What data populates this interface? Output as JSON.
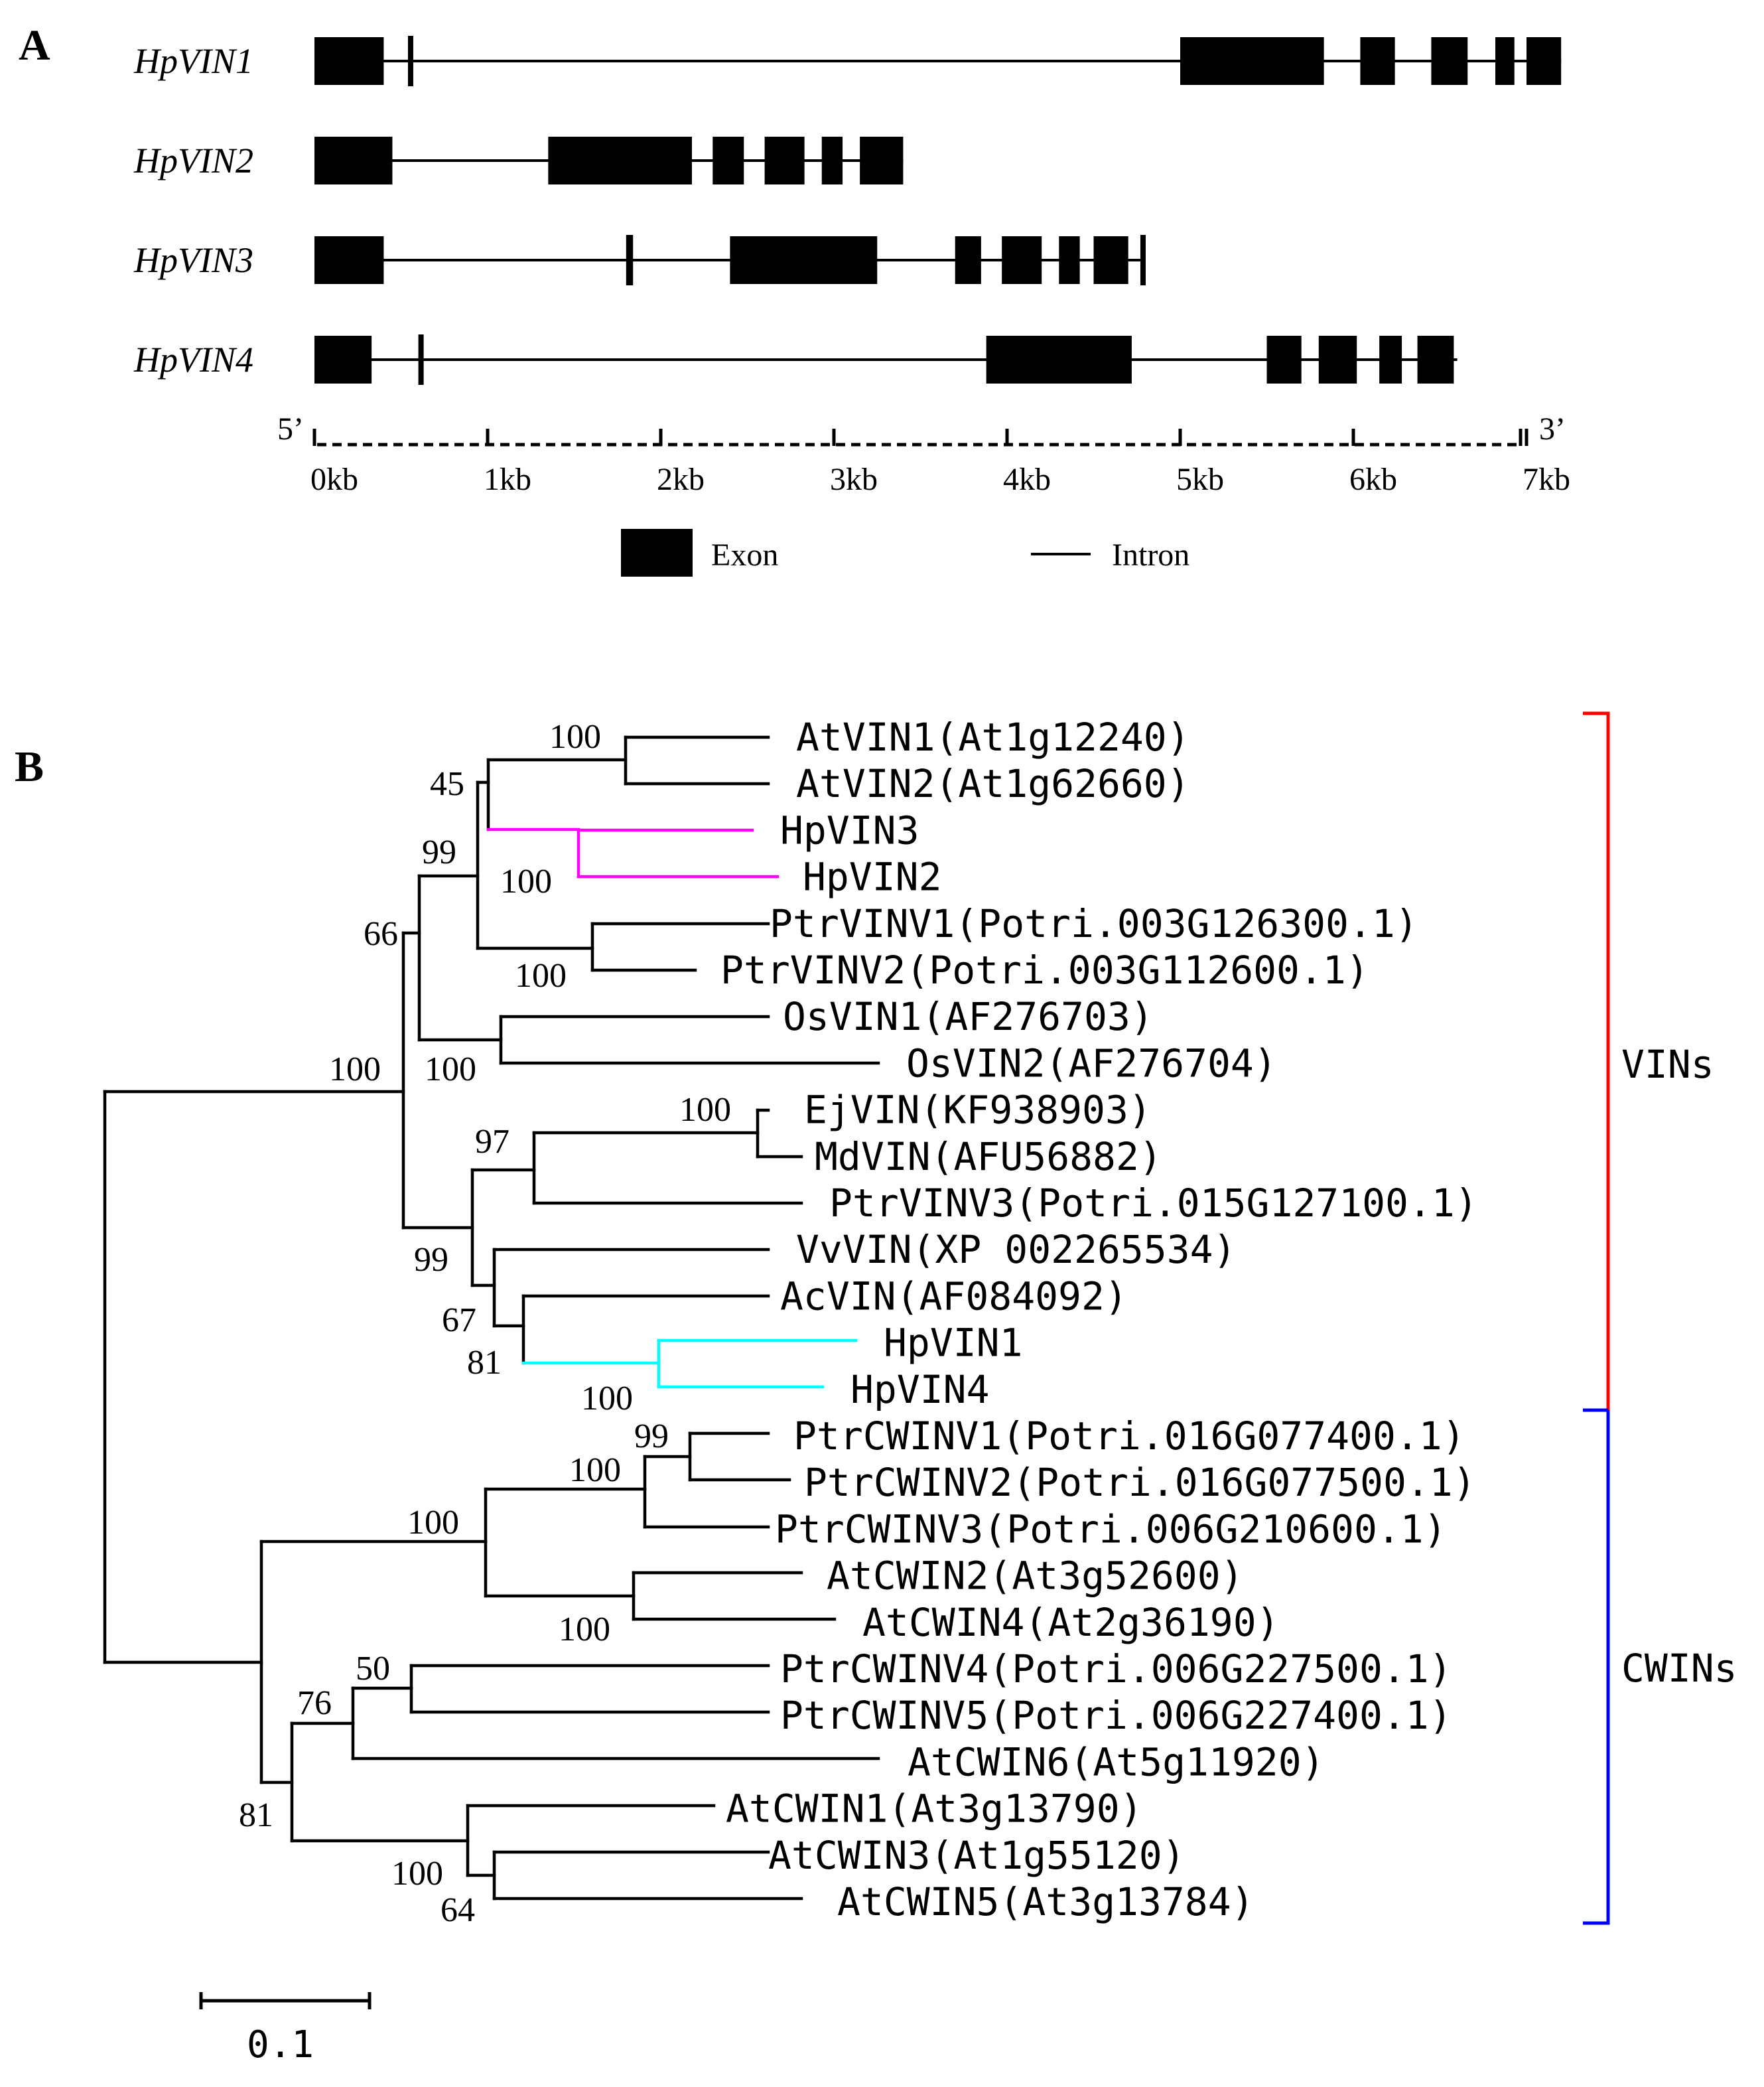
{
  "panel_a": {
    "letter": "A",
    "end_5": "5’",
    "end_3": "3’",
    "ticks": [
      {
        "label": "0kb",
        "kb": 0
      },
      {
        "label": "1kb",
        "kb": 1
      },
      {
        "label": "2kb",
        "kb": 2
      },
      {
        "label": "3kb",
        "kb": 3
      },
      {
        "label": "4kb",
        "kb": 4
      },
      {
        "label": "5kb",
        "kb": 5
      },
      {
        "label": "6kb",
        "kb": 6
      },
      {
        "label": "7kb",
        "kb": 7
      }
    ],
    "genes": [
      {
        "name": "HpVIN1",
        "length_kb": 7.2,
        "exons": [
          [
            0,
            0.4
          ],
          [
            0.54,
            0.57
          ],
          [
            5.0,
            5.83
          ],
          [
            6.04,
            6.24
          ],
          [
            6.45,
            6.66
          ],
          [
            6.82,
            6.93
          ],
          [
            7.0,
            7.2
          ]
        ]
      },
      {
        "name": "HpVIN2",
        "length_kb": 3.4,
        "exons": [
          [
            0,
            0.45
          ],
          [
            1.35,
            2.18
          ],
          [
            2.3,
            2.48
          ],
          [
            2.6,
            2.83
          ],
          [
            2.93,
            3.05
          ],
          [
            3.15,
            3.4
          ]
        ]
      },
      {
        "name": "HpVIN3",
        "length_kb": 4.8,
        "exons": [
          [
            0,
            0.4
          ],
          [
            1.8,
            1.84
          ],
          [
            2.4,
            3.25
          ],
          [
            3.7,
            3.85
          ],
          [
            3.97,
            4.2
          ],
          [
            4.3,
            4.42
          ],
          [
            4.5,
            4.7
          ],
          [
            4.77,
            4.8
          ]
        ]
      },
      {
        "name": "HpVIN4",
        "length_kb": 6.6,
        "exons": [
          [
            0,
            0.33
          ],
          [
            0.6,
            0.63
          ],
          [
            3.88,
            4.72
          ],
          [
            5.5,
            5.7
          ],
          [
            5.8,
            6.02
          ],
          [
            6.15,
            6.28
          ],
          [
            6.37,
            6.58
          ]
        ]
      }
    ],
    "legend": {
      "exon_label": "Exon",
      "intron_label": "Intron"
    }
  },
  "panel_b": {
    "letter": "B",
    "colors": {
      "tree": "#000000",
      "hp_vin2_vin3_clade": "#ff00ff",
      "hp_vin1_vin4_clade": "#00ffff",
      "vins_bracket": "#ff0000",
      "cwins_bracket": "#0000ff"
    },
    "leaves": [
      {
        "label": "AtVIN1(At1g12240)"
      },
      {
        "label": "AtVIN2(At1g62660)"
      },
      {
        "label": "HpVIN3"
      },
      {
        "label": "HpVIN2"
      },
      {
        "label": "PtrVINV1(Potri.003G126300.1)"
      },
      {
        "label": "PtrVINV2(Potri.003G112600.1)"
      },
      {
        "label": "OsVIN1(AF276703)"
      },
      {
        "label": "OsVIN2(AF276704)"
      },
      {
        "label": "EjVIN(KF938903)"
      },
      {
        "label": "MdVIN(AFU56882)"
      },
      {
        "label": "PtrVINV3(Potri.015G127100.1)"
      },
      {
        "label": "VvVIN(XP 002265534)"
      },
      {
        "label": "AcVIN(AF084092)"
      },
      {
        "label": "HpVIN1"
      },
      {
        "label": "HpVIN4"
      },
      {
        "label": "PtrCWINV1(Potri.016G077400.1)"
      },
      {
        "label": "PtrCWINV2(Potri.016G077500.1)"
      },
      {
        "label": "PtrCWINV3(Potri.006G210600.1)"
      },
      {
        "label": "AtCWIN2(At3g52600)"
      },
      {
        "label": "AtCWIN4(At2g36190)"
      },
      {
        "label": "PtrCWINV4(Potri.006G227500.1)"
      },
      {
        "label": "PtrCWINV5(Potri.006G227400.1)"
      },
      {
        "label": "AtCWIN6(At5g11920)"
      },
      {
        "label": "AtCWIN1(At3g13790)"
      },
      {
        "label": "AtCWIN3(At1g55120)"
      },
      {
        "label": "AtCWIN5(At3g13784)"
      }
    ],
    "bootstraps": [
      "100",
      "45",
      "99",
      "100",
      "66",
      "100",
      "100",
      "100",
      "100",
      "97",
      "99",
      "67",
      "81",
      "100",
      "99",
      "100",
      "100",
      "100",
      "50",
      "76",
      "81",
      "100",
      "64"
    ],
    "groups": [
      {
        "label": "VINs"
      },
      {
        "label": "CWINs"
      }
    ],
    "scale_label": "0.1"
  }
}
